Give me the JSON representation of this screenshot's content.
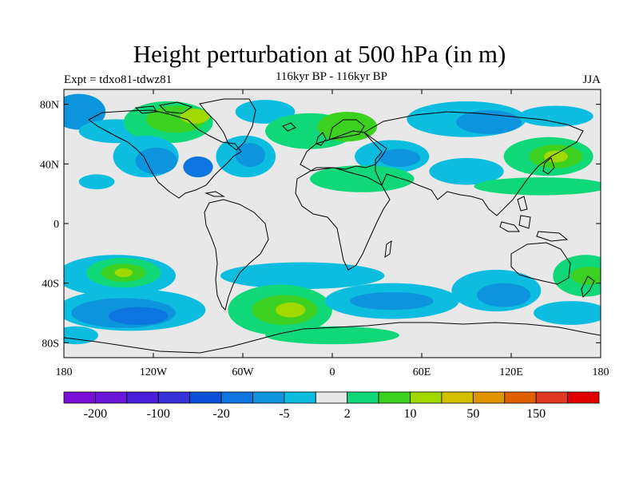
{
  "title": "Height perturbation at 500 hPa (in m)",
  "experiment": "Expt = tdxo81-tdwz81",
  "subtitle": "116kyr BP - 116kyr BP",
  "season": "JJA",
  "lat_ticks": [
    {
      "lat": 80,
      "label": "80N"
    },
    {
      "lat": 40,
      "label": "40N"
    },
    {
      "lat": 0,
      "label": "0"
    },
    {
      "lat": -40,
      "label": "40S"
    },
    {
      "lat": -80,
      "label": "80S"
    }
  ],
  "lon_ticks": [
    {
      "lon": -180,
      "label": "180"
    },
    {
      "lon": -120,
      "label": "120W"
    },
    {
      "lon": -60,
      "label": "60W"
    },
    {
      "lon": 0,
      "label": "0"
    },
    {
      "lon": 60,
      "label": "60E"
    },
    {
      "lon": 120,
      "label": "120E"
    },
    {
      "lon": 180,
      "label": "180"
    }
  ],
  "colorbar": {
    "colors": [
      "#7a10d8",
      "#6a16d8",
      "#4a20d8",
      "#3830d8",
      "#0a50d8",
      "#0d75e0",
      "#0c95dc",
      "#0cbde0",
      "#e8e8e8",
      "#10d878",
      "#3cd020",
      "#a0d800",
      "#d4c000",
      "#e09500",
      "#e06000",
      "#e03820",
      "#e00000"
    ],
    "labels": [
      {
        "index": 1,
        "text": "-200"
      },
      {
        "index": 3,
        "text": "-100"
      },
      {
        "index": 5,
        "text": "-20"
      },
      {
        "index": 7,
        "text": "-5"
      },
      {
        "index": 9,
        "text": "2"
      },
      {
        "index": 11,
        "text": "10"
      },
      {
        "index": 13,
        "text": "50"
      },
      {
        "index": 15,
        "text": "150"
      }
    ]
  },
  "level_colors": {
    "neutral": "#e8e8e8",
    "neg1": "#0cbde0",
    "neg2": "#0c95dc",
    "neg3": "#0d75e0",
    "neg4": "#0a50d8",
    "pos1": "#10d878",
    "pos2": "#3cd020",
    "pos3": "#a0d800",
    "pos4": "#d4c000",
    "pos5": "#e09500"
  },
  "field_anomalies": [
    {
      "lon": -170,
      "lat": 75,
      "rx": 18,
      "ry": 12,
      "level": "neg2"
    },
    {
      "lon": -145,
      "lat": 62,
      "rx": 25,
      "ry": 8,
      "level": "neg1"
    },
    {
      "lon": -110,
      "lat": 68,
      "rx": 30,
      "ry": 14,
      "level": "pos1"
    },
    {
      "lon": -105,
      "lat": 70,
      "rx": 20,
      "ry": 9,
      "level": "pos2"
    },
    {
      "lon": -92,
      "lat": 72,
      "rx": 10,
      "ry": 5,
      "level": "pos3"
    },
    {
      "lon": -125,
      "lat": 45,
      "rx": 22,
      "ry": 14,
      "level": "neg1"
    },
    {
      "lon": -118,
      "lat": 42,
      "rx": 14,
      "ry": 9,
      "level": "neg2"
    },
    {
      "lon": -90,
      "lat": 38,
      "rx": 10,
      "ry": 7,
      "level": "neg3"
    },
    {
      "lon": -58,
      "lat": 45,
      "rx": 20,
      "ry": 14,
      "level": "neg1"
    },
    {
      "lon": -55,
      "lat": 46,
      "rx": 10,
      "ry": 8,
      "level": "neg2"
    },
    {
      "lon": -45,
      "lat": 75,
      "rx": 20,
      "ry": 8,
      "level": "neg1"
    },
    {
      "lon": -15,
      "lat": 62,
      "rx": 30,
      "ry": 12,
      "level": "pos1"
    },
    {
      "lon": 10,
      "lat": 65,
      "rx": 20,
      "ry": 10,
      "level": "pos2"
    },
    {
      "lon": 40,
      "lat": 45,
      "rx": 25,
      "ry": 11,
      "level": "neg1"
    },
    {
      "lon": 45,
      "lat": 44,
      "rx": 14,
      "ry": 6,
      "level": "neg2"
    },
    {
      "lon": 20,
      "lat": 30,
      "rx": 35,
      "ry": 9,
      "level": "pos1"
    },
    {
      "lon": 90,
      "lat": 70,
      "rx": 40,
      "ry": 12,
      "level": "neg1"
    },
    {
      "lon": 105,
      "lat": 68,
      "rx": 22,
      "ry": 8,
      "level": "neg2"
    },
    {
      "lon": 90,
      "lat": 35,
      "rx": 25,
      "ry": 9,
      "level": "neg1"
    },
    {
      "lon": 145,
      "lat": 45,
      "rx": 30,
      "ry": 13,
      "level": "pos1"
    },
    {
      "lon": 150,
      "lat": 45,
      "rx": 18,
      "ry": 8,
      "level": "pos2"
    },
    {
      "lon": 150,
      "lat": 45,
      "rx": 8,
      "ry": 4,
      "level": "pos3"
    },
    {
      "lon": 140,
      "lat": 25,
      "rx": 45,
      "ry": 6,
      "level": "pos1"
    },
    {
      "lon": 150,
      "lat": 72,
      "rx": 25,
      "ry": 7,
      "level": "neg1"
    },
    {
      "lon": -158,
      "lat": 28,
      "rx": 12,
      "ry": 5,
      "level": "neg1"
    },
    {
      "lon": -145,
      "lat": -35,
      "rx": 40,
      "ry": 14,
      "level": "neg1"
    },
    {
      "lon": -140,
      "lat": -33,
      "rx": 25,
      "ry": 10,
      "level": "pos1"
    },
    {
      "lon": -140,
      "lat": -33,
      "rx": 15,
      "ry": 6,
      "level": "pos2"
    },
    {
      "lon": -140,
      "lat": -33,
      "rx": 6,
      "ry": 3,
      "level": "pos3"
    },
    {
      "lon": -135,
      "lat": -58,
      "rx": 50,
      "ry": 14,
      "level": "neg1"
    },
    {
      "lon": -140,
      "lat": -60,
      "rx": 35,
      "ry": 10,
      "level": "neg2"
    },
    {
      "lon": -130,
      "lat": -62,
      "rx": 20,
      "ry": 6,
      "level": "neg3"
    },
    {
      "lon": -172,
      "lat": -75,
      "rx": 15,
      "ry": 6,
      "level": "neg1"
    },
    {
      "lon": -20,
      "lat": -35,
      "rx": 55,
      "ry": 9,
      "level": "neg1"
    },
    {
      "lon": -35,
      "lat": -58,
      "rx": 35,
      "ry": 17,
      "level": "pos1"
    },
    {
      "lon": -32,
      "lat": -58,
      "rx": 22,
      "ry": 10,
      "level": "pos2"
    },
    {
      "lon": -28,
      "lat": -58,
      "rx": 10,
      "ry": 5,
      "level": "pos3"
    },
    {
      "lon": 40,
      "lat": -52,
      "rx": 45,
      "ry": 12,
      "level": "neg1"
    },
    {
      "lon": 40,
      "lat": -52,
      "rx": 28,
      "ry": 6,
      "level": "neg2"
    },
    {
      "lon": 110,
      "lat": -45,
      "rx": 30,
      "ry": 14,
      "level": "neg1"
    },
    {
      "lon": 115,
      "lat": -48,
      "rx": 18,
      "ry": 8,
      "level": "neg2"
    },
    {
      "lon": 0,
      "lat": -75,
      "rx": 45,
      "ry": 6,
      "level": "pos1"
    },
    {
      "lon": 170,
      "lat": -35,
      "rx": 22,
      "ry": 14,
      "level": "pos1"
    },
    {
      "lon": 172,
      "lat": -35,
      "rx": 12,
      "ry": 6,
      "level": "pos2"
    },
    {
      "lon": 160,
      "lat": -60,
      "rx": 25,
      "ry": 8,
      "level": "neg1"
    }
  ]
}
